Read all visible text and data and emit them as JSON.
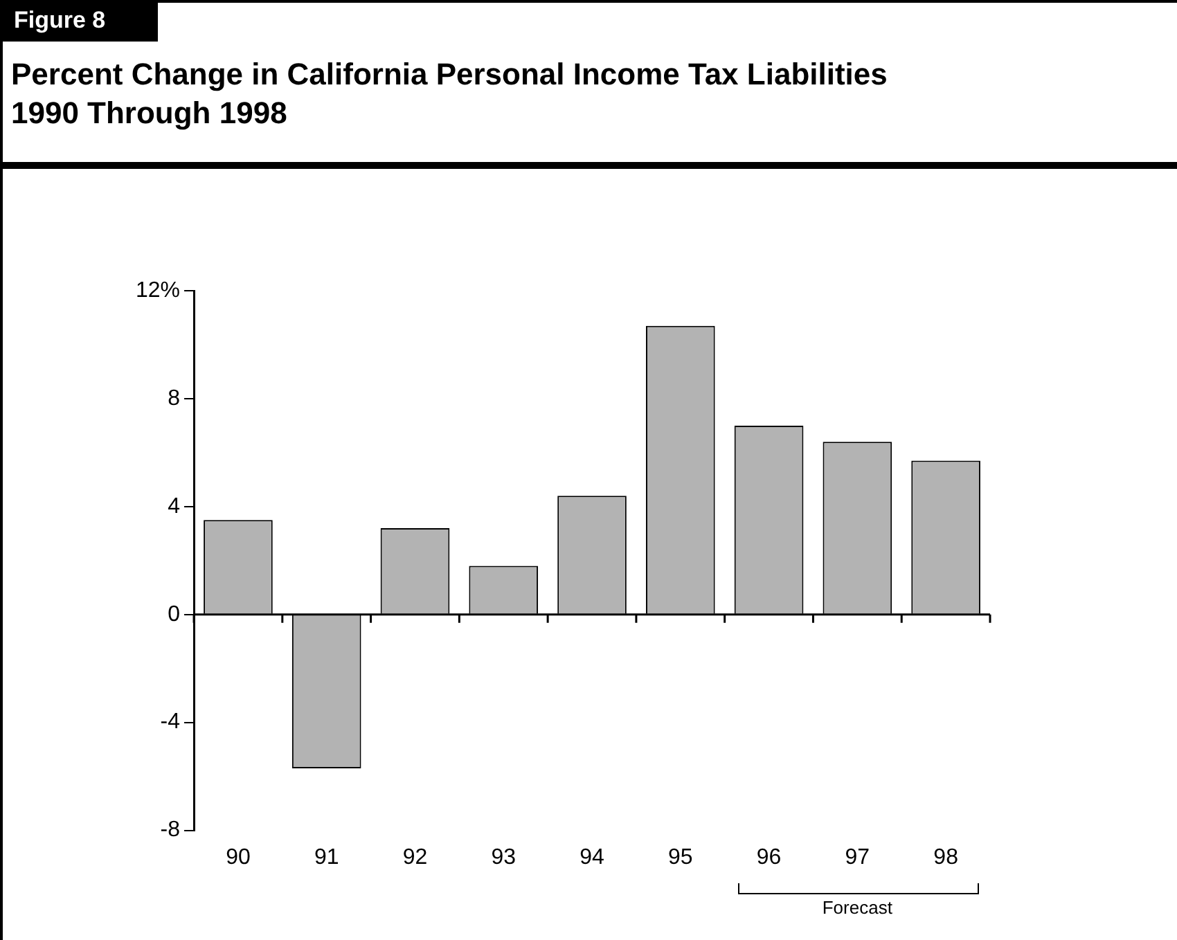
{
  "chart_data": {
    "type": "bar",
    "title": "Percent Change in California Personal Income Tax Liabilities\n1990 Through 1998",
    "categories": [
      "90",
      "91",
      "92",
      "93",
      "94",
      "95",
      "96",
      "97",
      "98"
    ],
    "values": [
      3.5,
      -5.7,
      3.2,
      1.8,
      4.4,
      10.7,
      7.0,
      6.4,
      5.7
    ],
    "color": "#b3b3b3",
    "ylim": [
      -8,
      12
    ],
    "yticks": [
      -8,
      -4,
      0,
      4,
      8,
      {
        "value": 12,
        "label": "12%"
      }
    ],
    "annotations": [
      "Figure 8",
      "Forecast"
    ]
  }
}
